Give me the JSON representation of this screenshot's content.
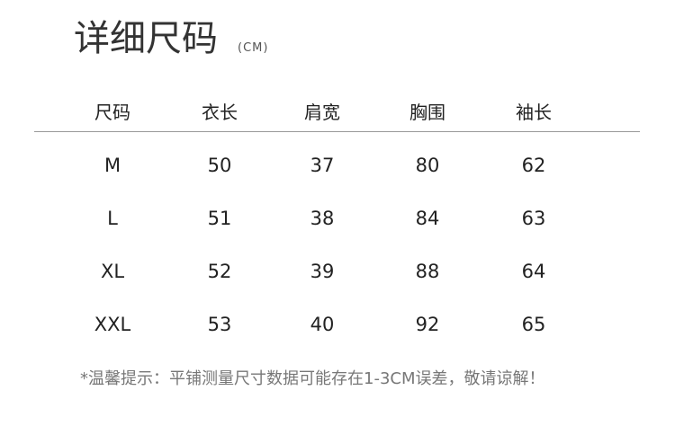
{
  "title": "详细尺码",
  "unit": "(CM)",
  "table": {
    "headers": [
      "尺码",
      "衣长",
      "肩宽",
      "胸围",
      "袖长"
    ],
    "rows": [
      [
        "M",
        "50",
        "37",
        "80",
        "62"
      ],
      [
        "L",
        "51",
        "38",
        "84",
        "63"
      ],
      [
        "XL",
        "52",
        "39",
        "88",
        "64"
      ],
      [
        "XXL",
        "53",
        "40",
        "92",
        "65"
      ]
    ]
  },
  "note": "*温馨提示：平铺测量尺寸数据可能存在1-3CM误差，敬请谅解！"
}
